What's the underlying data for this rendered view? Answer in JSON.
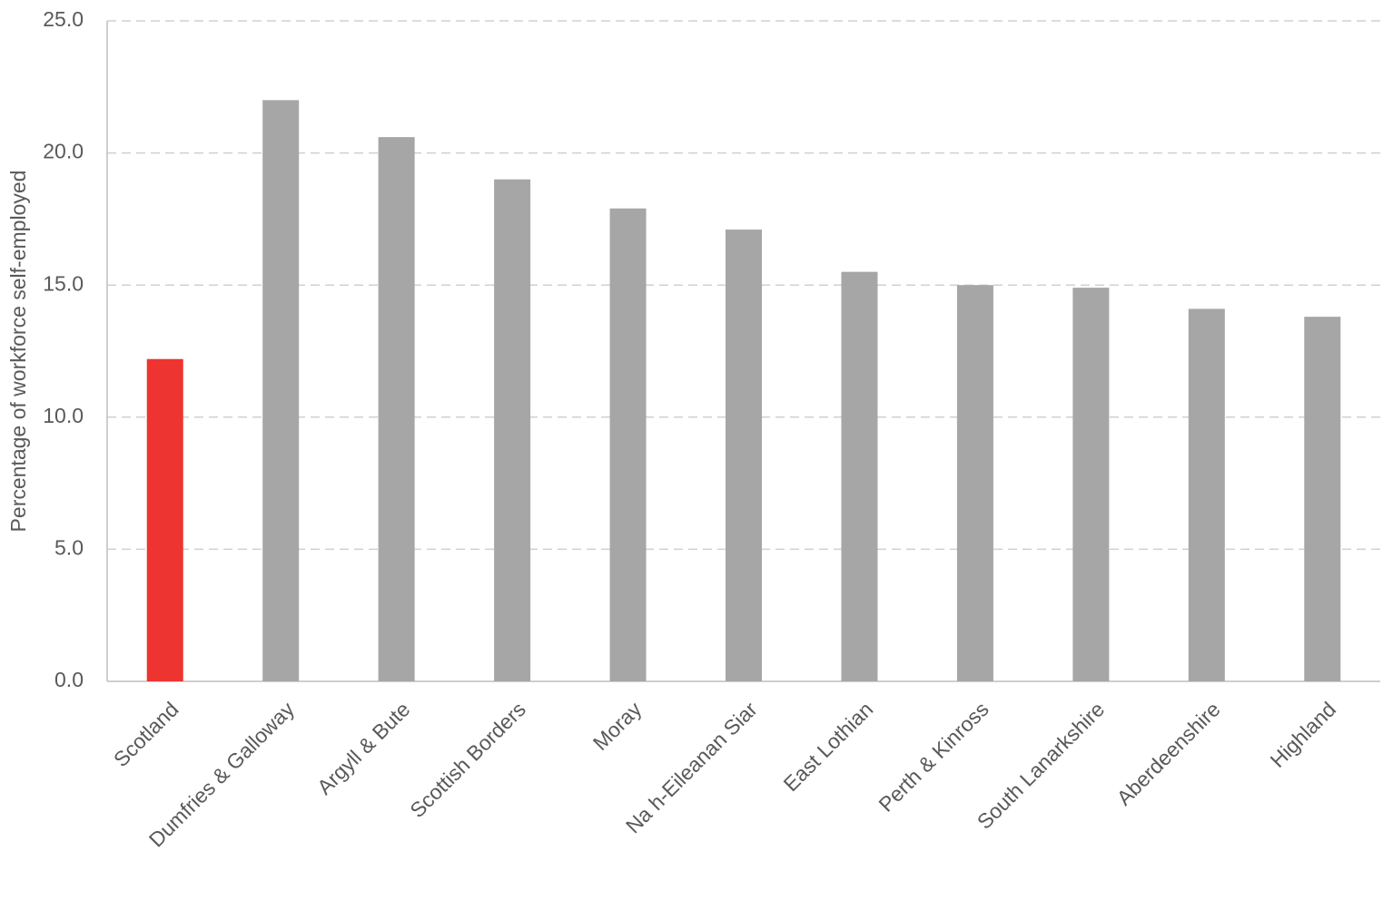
{
  "chart_data": {
    "type": "bar",
    "y_label": "Percentage of workforce self-employed",
    "categories": [
      "Scotland",
      "Dumfries & Galloway",
      "Argyll & Bute",
      "Scottish Borders",
      "Moray",
      "Na h-Eileanan Siar",
      "East Lothian",
      "Perth & Kinross",
      "South Lanarkshire",
      "Aberdeenshire",
      "Highland"
    ],
    "values": [
      12.2,
      22.0,
      20.6,
      19.0,
      17.9,
      17.1,
      15.5,
      15.0,
      14.9,
      14.1,
      13.8
    ],
    "colors": [
      "#ee3430",
      "#a6a6a6",
      "#a6a6a6",
      "#a6a6a6",
      "#a6a6a6",
      "#a6a6a6",
      "#a6a6a6",
      "#a6a6a6",
      "#a6a6a6",
      "#a6a6a6",
      "#a6a6a6"
    ],
    "ylim": [
      0,
      25
    ],
    "yticks": [
      {
        "value": 0,
        "label": "0.0"
      },
      {
        "value": 5,
        "label": "5.0"
      },
      {
        "value": 10,
        "label": "10.0"
      },
      {
        "value": 15,
        "label": "15.0"
      },
      {
        "value": 20,
        "label": "20.0"
      },
      {
        "value": 25,
        "label": "25.0"
      }
    ],
    "grid": true
  }
}
